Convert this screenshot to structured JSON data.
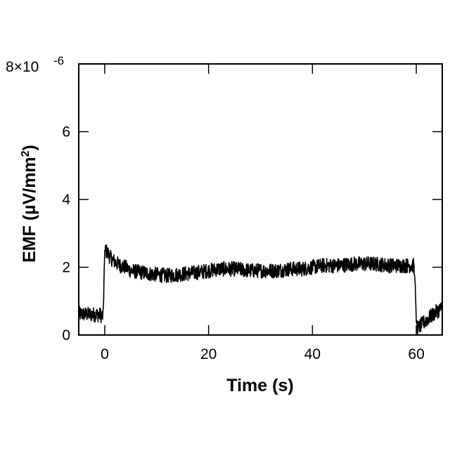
{
  "chart_data": {
    "type": "line",
    "xlabel": "Time (s)",
    "ylabel_main": "EMF (µV/mm",
    "ylabel_sup": "2",
    "ylabel_close": ")",
    "y_scale_label": "8×10",
    "y_scale_exp": "-6",
    "xlim": [
      -5,
      65
    ],
    "ylim": [
      0,
      8
    ],
    "y_multiplier": 1e-06,
    "x_ticks": [
      0,
      20,
      40,
      60
    ],
    "x_tick_labels": [
      "0",
      "20",
      "40",
      "60"
    ],
    "y_ticks": [
      0,
      2,
      4,
      6
    ],
    "y_tick_labels": [
      "0",
      "2",
      "4",
      "6"
    ],
    "grid": false,
    "line_color": "#000000",
    "series": [
      {
        "x": [
          -5,
          -1,
          -0.3,
          0,
          0.5,
          1,
          2,
          3,
          4,
          5,
          7,
          9,
          12,
          15,
          18,
          20,
          22,
          25,
          28,
          30,
          33,
          36,
          38,
          40,
          42,
          45,
          48,
          50,
          52,
          55,
          58,
          59.5,
          59.8,
          60,
          60.3,
          62,
          64,
          65
        ],
        "values": [
          0.62,
          0.6,
          0.55,
          2.5,
          2.45,
          2.3,
          2.15,
          2.05,
          2.0,
          1.9,
          1.85,
          1.8,
          1.75,
          1.8,
          1.85,
          1.9,
          1.95,
          1.95,
          1.9,
          1.9,
          1.9,
          1.95,
          1.95,
          2.0,
          2.05,
          2.05,
          2.1,
          2.1,
          2.1,
          2.05,
          2.05,
          2.05,
          1.5,
          0.4,
          0.2,
          0.45,
          0.7,
          0.8
        ],
        "noise": 0.22
      }
    ]
  }
}
